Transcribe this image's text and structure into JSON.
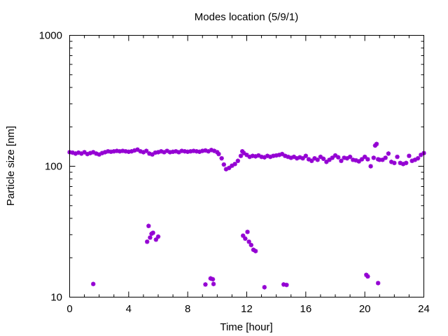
{
  "chart_data": {
    "type": "scatter",
    "title": "Modes location (5/9/1)",
    "xlabel": "Time [hour]",
    "ylabel": "Particle size [nm]",
    "xlim": [
      0,
      24
    ],
    "ylim": [
      10,
      1000
    ],
    "yscale": "log",
    "grid": false,
    "legend": "none",
    "xticks": [
      0,
      4,
      8,
      12,
      16,
      20,
      24
    ],
    "xtick_labels": [
      "0",
      "4",
      "8",
      "12",
      "16",
      "20",
      "24"
    ],
    "yticks": [
      10,
      100,
      1000
    ],
    "ytick_labels": [
      "10",
      "100",
      "1000"
    ],
    "marker_color": "#9400d3",
    "series": [
      {
        "values": [
          [
            0.0,
            128
          ],
          [
            0.2,
            127
          ],
          [
            0.4,
            125
          ],
          [
            0.6,
            127
          ],
          [
            0.8,
            125
          ],
          [
            1.0,
            128
          ],
          [
            1.2,
            124
          ],
          [
            1.4,
            126
          ],
          [
            1.6,
            128
          ],
          [
            1.8,
            125
          ],
          [
            2.0,
            123
          ],
          [
            2.2,
            126
          ],
          [
            2.4,
            128
          ],
          [
            2.6,
            130
          ],
          [
            2.8,
            129
          ],
          [
            3.0,
            130
          ],
          [
            3.2,
            131
          ],
          [
            3.4,
            130
          ],
          [
            3.6,
            131
          ],
          [
            3.8,
            130
          ],
          [
            4.0,
            129
          ],
          [
            4.2,
            130
          ],
          [
            4.4,
            132
          ],
          [
            4.6,
            134
          ],
          [
            4.8,
            130
          ],
          [
            5.0,
            128
          ],
          [
            5.2,
            131
          ],
          [
            5.4,
            125
          ],
          [
            5.6,
            123
          ],
          [
            5.8,
            127
          ],
          [
            6.0,
            128
          ],
          [
            6.2,
            130
          ],
          [
            6.4,
            128
          ],
          [
            6.6,
            131
          ],
          [
            6.8,
            128
          ],
          [
            7.0,
            129
          ],
          [
            7.2,
            130
          ],
          [
            7.4,
            128
          ],
          [
            7.6,
            131
          ],
          [
            7.8,
            130
          ],
          [
            8.0,
            129
          ],
          [
            8.2,
            130
          ],
          [
            8.4,
            131
          ],
          [
            8.6,
            130
          ],
          [
            8.8,
            129
          ],
          [
            9.0,
            131
          ],
          [
            9.2,
            132
          ],
          [
            9.4,
            130
          ],
          [
            9.6,
            133
          ],
          [
            9.8,
            131
          ],
          [
            10.0,
            128
          ],
          [
            10.1,
            124
          ],
          [
            10.3,
            115
          ],
          [
            10.45,
            103
          ],
          [
            10.6,
            95
          ],
          [
            10.8,
            97
          ],
          [
            11.0,
            101
          ],
          [
            11.2,
            104
          ],
          [
            11.4,
            110
          ],
          [
            11.6,
            120
          ],
          [
            11.7,
            130
          ],
          [
            11.8,
            126
          ],
          [
            12.0,
            122
          ],
          [
            12.2,
            118
          ],
          [
            12.4,
            120
          ],
          [
            12.6,
            119
          ],
          [
            12.8,
            121
          ],
          [
            13.0,
            118
          ],
          [
            13.2,
            117
          ],
          [
            13.4,
            120
          ],
          [
            13.6,
            118
          ],
          [
            13.8,
            120
          ],
          [
            14.0,
            121
          ],
          [
            14.2,
            122
          ],
          [
            14.4,
            124
          ],
          [
            14.6,
            120
          ],
          [
            14.8,
            118
          ],
          [
            15.0,
            116
          ],
          [
            15.2,
            118
          ],
          [
            15.4,
            115
          ],
          [
            15.6,
            117
          ],
          [
            15.8,
            115
          ],
          [
            16.0,
            120
          ],
          [
            16.2,
            113
          ],
          [
            16.4,
            110
          ],
          [
            16.6,
            115
          ],
          [
            16.8,
            112
          ],
          [
            17.0,
            118
          ],
          [
            17.2,
            114
          ],
          [
            17.4,
            108
          ],
          [
            17.6,
            112
          ],
          [
            17.8,
            116
          ],
          [
            18.0,
            121
          ],
          [
            18.2,
            117
          ],
          [
            18.4,
            110
          ],
          [
            18.6,
            116
          ],
          [
            18.8,
            115
          ],
          [
            19.0,
            118
          ],
          [
            19.2,
            112
          ],
          [
            19.4,
            111
          ],
          [
            19.6,
            109
          ],
          [
            19.8,
            113
          ],
          [
            20.0,
            118
          ],
          [
            20.2,
            113
          ],
          [
            20.4,
            100
          ],
          [
            20.6,
            116
          ],
          [
            20.7,
            144
          ],
          [
            20.8,
            148
          ],
          [
            20.9,
            113
          ],
          [
            21.0,
            112
          ],
          [
            21.2,
            112
          ],
          [
            21.4,
            116
          ],
          [
            21.6,
            125
          ],
          [
            21.8,
            108
          ],
          [
            22.0,
            106
          ],
          [
            22.2,
            118
          ],
          [
            22.4,
            106
          ],
          [
            22.6,
            104
          ],
          [
            22.8,
            106
          ],
          [
            23.0,
            120
          ],
          [
            23.2,
            110
          ],
          [
            23.4,
            112
          ],
          [
            23.6,
            115
          ],
          [
            23.8,
            122
          ],
          [
            24.0,
            126
          ],
          [
            5.25,
            26.5
          ],
          [
            5.35,
            35
          ],
          [
            5.45,
            28.5
          ],
          [
            5.55,
            30.5
          ],
          [
            5.65,
            31
          ],
          [
            5.85,
            27.5
          ],
          [
            6.0,
            29
          ],
          [
            11.75,
            29.5
          ],
          [
            11.9,
            28
          ],
          [
            12.05,
            31.5
          ],
          [
            12.15,
            26.5
          ],
          [
            12.3,
            25
          ],
          [
            12.45,
            23
          ],
          [
            12.6,
            22.5
          ],
          [
            1.6,
            12.6
          ],
          [
            9.2,
            12.5
          ],
          [
            9.55,
            13.9
          ],
          [
            9.7,
            13.7
          ],
          [
            9.75,
            12.6
          ],
          [
            13.2,
            11.9
          ],
          [
            14.5,
            12.5
          ],
          [
            14.7,
            12.4
          ],
          [
            20.1,
            14.8
          ],
          [
            20.2,
            14.4
          ],
          [
            20.9,
            12.8
          ]
        ]
      }
    ]
  }
}
